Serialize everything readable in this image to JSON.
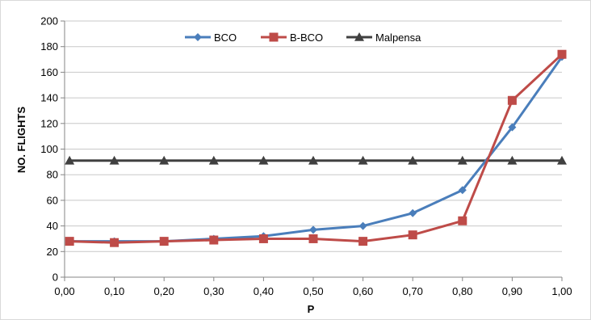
{
  "chart_data": {
    "type": "line",
    "xlabel": "P",
    "ylabel": "NO. FLIGHTS",
    "x": [
      0.01,
      0.1,
      0.2,
      0.3,
      0.4,
      0.5,
      0.6,
      0.7,
      0.8,
      0.9,
      1.0
    ],
    "x_tick_values": [
      0,
      0.1,
      0.2,
      0.3,
      0.4,
      0.5,
      0.6,
      0.7,
      0.8,
      0.9,
      1.0
    ],
    "x_tick_labels": [
      "0,00",
      "0,10",
      "0,20",
      "0,30",
      "0,40",
      "0,50",
      "0,60",
      "0,70",
      "0,80",
      "0,90",
      "1,00"
    ],
    "xlim": [
      0,
      1
    ],
    "ylim": [
      0,
      200
    ],
    "y_ticks": [
      0,
      20,
      40,
      60,
      80,
      100,
      120,
      140,
      160,
      180,
      200
    ],
    "grid": "horizontal",
    "legend_position": "top",
    "series": [
      {
        "name": "BCO",
        "color": "#4a7ebb",
        "marker": "diamond",
        "values": [
          28,
          28,
          28,
          30,
          32,
          37,
          40,
          50,
          68,
          117,
          172
        ]
      },
      {
        "name": "B-BCO",
        "color": "#be4b48",
        "marker": "square",
        "values": [
          28,
          27,
          28,
          29,
          30,
          30,
          28,
          33,
          44,
          138,
          174
        ]
      },
      {
        "name": "Malpensa",
        "color": "#404040",
        "marker": "triangle",
        "values": [
          91,
          91,
          91,
          91,
          91,
          91,
          91,
          91,
          91,
          91,
          91
        ]
      }
    ]
  }
}
